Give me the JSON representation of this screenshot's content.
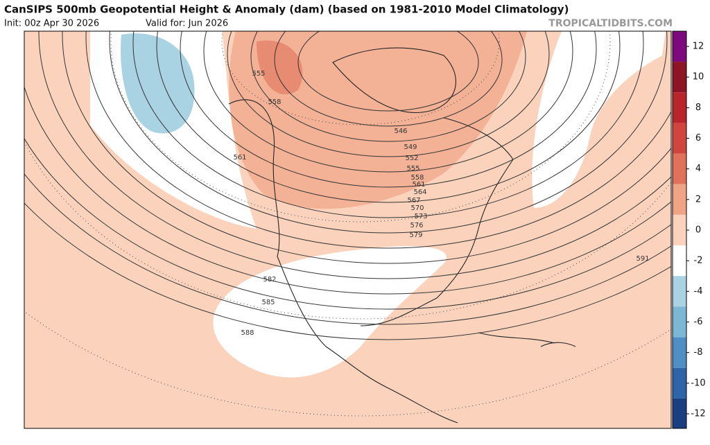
{
  "header": {
    "title": "CanSIPS 500mb Geopotential Height & Anomaly (dam) (based on 1981-2010 Model Climatology)",
    "init": "Init: 00z Apr 30 2026",
    "valid": "Valid for: Jun 2026",
    "site": "TROPICALTIDBITS.COM"
  },
  "colorbar": {
    "ticks": [
      12,
      10,
      8,
      6,
      4,
      2,
      0,
      -2,
      -4,
      -6,
      -8,
      -10,
      -12
    ],
    "colors": [
      "#7d0a7d",
      "#8c1425",
      "#b8262c",
      "#d0463f",
      "#e0725c",
      "#f0a486",
      "#fbd3bd",
      "#ffffff",
      "#a9d2e3",
      "#7db7d6",
      "#4f8fc4",
      "#2e64a8",
      "#1a3f80",
      "#0c2355"
    ]
  },
  "contour_labels": [
    555,
    558,
    561,
    546,
    549,
    552,
    555,
    558,
    561,
    564,
    567,
    570,
    573,
    576,
    579,
    582,
    585,
    588,
    591
  ]
}
